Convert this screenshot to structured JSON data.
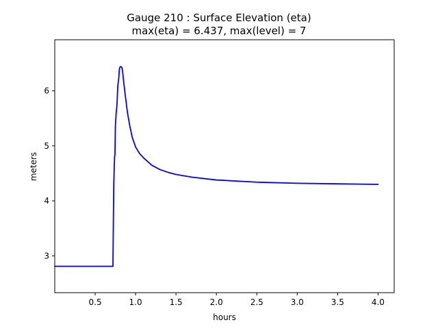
{
  "chart_data": {
    "type": "line",
    "title_line1": "Gauge 210 : Surface Elevation (eta)",
    "title_line2": "max(eta) =   6.437,    max(level) = 7",
    "xlabel": "hours",
    "ylabel": "meters",
    "xlim": [
      0.0,
      4.2
    ],
    "ylim": [
      2.33,
      6.93
    ],
    "xticks": [
      {
        "value": 0.5,
        "label": "0.5"
      },
      {
        "value": 1.0,
        "label": "1.0"
      },
      {
        "value": 1.5,
        "label": "1.5"
      },
      {
        "value": 2.0,
        "label": "2.0"
      },
      {
        "value": 2.5,
        "label": "2.5"
      },
      {
        "value": 3.0,
        "label": "3.0"
      },
      {
        "value": 3.5,
        "label": "3.5"
      },
      {
        "value": 4.0,
        "label": "4.0"
      }
    ],
    "yticks": [
      {
        "value": 3,
        "label": "3"
      },
      {
        "value": 4,
        "label": "4"
      },
      {
        "value": 5,
        "label": "5"
      },
      {
        "value": 6,
        "label": "6"
      }
    ],
    "series": [
      {
        "name": "eta",
        "color": "#0000ff",
        "x": [
          0.0,
          0.7,
          0.72,
          0.725,
          0.73,
          0.74,
          0.745,
          0.75,
          0.76,
          0.77,
          0.78,
          0.79,
          0.8,
          0.81,
          0.82,
          0.83,
          0.84,
          0.85,
          0.87,
          0.9,
          0.93,
          0.96,
          1.0,
          1.05,
          1.1,
          1.2,
          1.3,
          1.4,
          1.5,
          1.7,
          2.0,
          2.5,
          3.0,
          3.5,
          4.0
        ],
        "y": [
          2.81,
          2.81,
          2.81,
          3.6,
          4.3,
          4.8,
          4.85,
          5.35,
          5.6,
          5.75,
          6.1,
          6.2,
          6.4,
          6.44,
          6.44,
          6.43,
          6.35,
          6.2,
          5.95,
          5.6,
          5.35,
          5.15,
          4.98,
          4.86,
          4.78,
          4.65,
          4.57,
          4.52,
          4.48,
          4.43,
          4.38,
          4.34,
          4.32,
          4.31,
          4.3
        ]
      }
    ]
  }
}
